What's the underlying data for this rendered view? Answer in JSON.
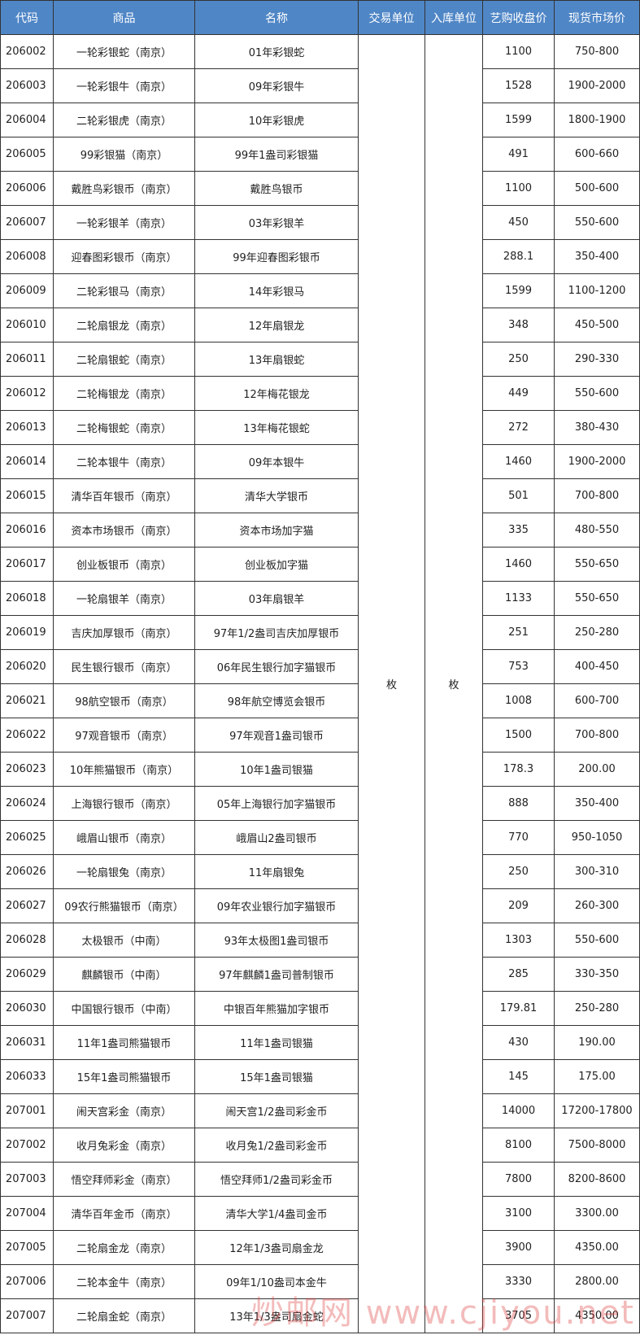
{
  "table": {
    "header": [
      "代码",
      "商品",
      "名称",
      "交易单位",
      "入库单位",
      "艺购收盘价",
      "现货市场价"
    ],
    "trade_unit": "枚",
    "storage_unit": "枚",
    "rows": [
      [
        "206002",
        "一轮彩银蛇（南京）",
        "01年彩银蛇",
        "1100",
        "750-800"
      ],
      [
        "206003",
        "一轮彩银牛（南京）",
        "09年彩银牛",
        "1528",
        "1900-2000"
      ],
      [
        "206004",
        "二轮彩银虎（南京）",
        "10年彩银虎",
        "1599",
        "1800-1900"
      ],
      [
        "206005",
        "99彩银猫（南京）",
        "99年1盎司彩银猫",
        "491",
        "600-660"
      ],
      [
        "206006",
        "戴胜鸟彩银币（南京）",
        "戴胜鸟银币",
        "1100",
        "500-600"
      ],
      [
        "206007",
        "一轮彩银羊（南京）",
        "03年彩银羊",
        "450",
        "550-600"
      ],
      [
        "206008",
        "迎春图彩银币（南京）",
        "99年迎春图彩银币",
        "288.1",
        "350-400"
      ],
      [
        "206009",
        "二轮彩银马（南京）",
        "14年彩银马",
        "1599",
        "1100-1200"
      ],
      [
        "206010",
        "二轮扇银龙（南京）",
        "12年扇银龙",
        "348",
        "450-500"
      ],
      [
        "206011",
        "二轮扇银蛇（南京）",
        "13年扇银蛇",
        "250",
        "290-330"
      ],
      [
        "206012",
        "二轮梅银龙（南京）",
        "12年梅花银龙",
        "449",
        "550-600"
      ],
      [
        "206013",
        "二轮梅银蛇（南京）",
        "13年梅花银蛇",
        "272",
        "380-430"
      ],
      [
        "206014",
        "二轮本银牛（南京）",
        "09年本银牛",
        "1460",
        "1900-2000"
      ],
      [
        "206015",
        "清华百年银币（南京）",
        "清华大学银币",
        "501",
        "700-800"
      ],
      [
        "206016",
        "资本市场银币（南京）",
        "资本市场加字猫",
        "335",
        "480-550"
      ],
      [
        "206017",
        "创业板银币（南京）",
        "创业板加字猫",
        "1460",
        "550-650"
      ],
      [
        "206018",
        "一轮扇银羊（南京）",
        "03年扇银羊",
        "1133",
        "550-650"
      ],
      [
        "206019",
        "吉庆加厚银币（南京）",
        "97年1/2盎司吉庆加厚银币",
        "251",
        "250-280"
      ],
      [
        "206020",
        "民生银行银币（南京）",
        "06年民生银行加字猫银币",
        "753",
        "400-450"
      ],
      [
        "206021",
        "98航空银币（南京）",
        "98年航空博览会银币",
        "1008",
        "600-700"
      ],
      [
        "206022",
        "97观音银币（南京）",
        "97年观音1盎司银币",
        "1500",
        "700-800"
      ],
      [
        "206023",
        "10年熊猫银币（南京）",
        "10年1盎司银猫",
        "178.3",
        "200.00"
      ],
      [
        "206024",
        "上海银行银币（南京）",
        "05年上海银行加字猫银币",
        "888",
        "350-400"
      ],
      [
        "206025",
        "峨眉山银币（南京）",
        "峨眉山2盎司银币",
        "770",
        "950-1050"
      ],
      [
        "206026",
        "一轮扇银兔（南京）",
        "11年扇银兔",
        "250",
        "300-310"
      ],
      [
        "206027",
        "09农行熊猫银币（南京）",
        "09年农业银行加字猫银币",
        "209",
        "260-300"
      ],
      [
        "206028",
        "太极银币（中南）",
        "93年太极图1盎司银币",
        "1303",
        "550-600"
      ],
      [
        "206029",
        "麒麟银币（中南）",
        "97年麒麟1盎司普制银币",
        "285",
        "330-350"
      ],
      [
        "206030",
        "中国银行银币（中南）",
        "中银百年熊猫加字银币",
        "179.81",
        "250-280"
      ],
      [
        "206031",
        "11年1盎司熊猫银币",
        "11年1盎司银猫",
        "430",
        "190.00"
      ],
      [
        "206033",
        "15年1盎司熊猫银币",
        "15年1盎司银猫",
        "145",
        "175.00"
      ],
      [
        "207001",
        "闹天宫彩金（南京）",
        "闹天宫1/2盎司彩金币",
        "14000",
        "17200-17800"
      ],
      [
        "207002",
        "收月兔彩金（南京）",
        "收月兔1/2盎司彩金币",
        "8100",
        "7500-8000"
      ],
      [
        "207003",
        "悟空拜师彩金（南京）",
        "悟空拜师1/2盎司彩金币",
        "7800",
        "8200-8600"
      ],
      [
        "207004",
        "清华百年金币（南京）",
        "清华大学1/4盎司金币",
        "3100",
        "3300.00"
      ],
      [
        "207005",
        "二轮扇金龙（南京）",
        "12年1/3盎司扇金龙",
        "3900",
        "4350.00"
      ],
      [
        "207006",
        "二轮本金牛（南京）",
        "09年1/10盎司本金牛",
        "3330",
        "2800.00"
      ],
      [
        "207007",
        "二轮扇金蛇（南京）",
        "13年1/3盎司扇金蛇",
        "3705",
        "4350.00"
      ]
    ]
  },
  "watermark": "炒邮网 www.cjiyou.net"
}
